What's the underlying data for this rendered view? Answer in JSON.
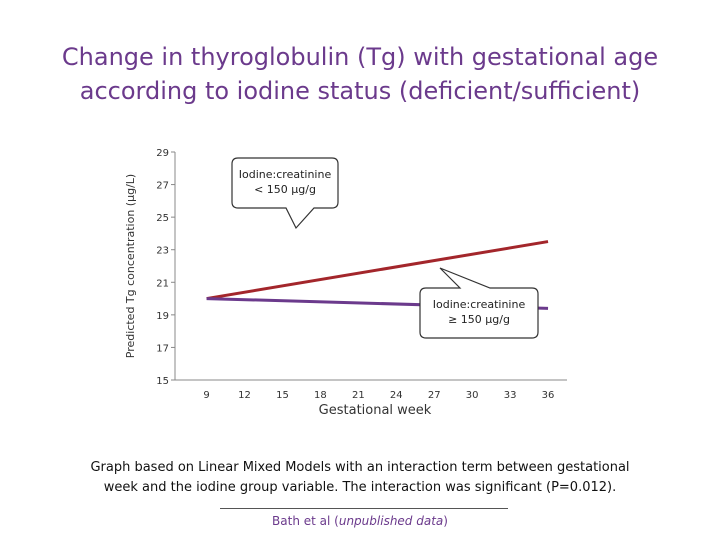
{
  "title_lines": [
    "Change in thyroglobulin (Tg) with gestational age",
    "according to iodine status (deficient/sufficient)"
  ],
  "chart_data": {
    "type": "line",
    "ylabel": "Predicted Tg concentration (μg/L)",
    "xlabel": "Gestational week",
    "ylim": [
      15,
      29
    ],
    "yticks": [
      15,
      17,
      19,
      21,
      23,
      25,
      27,
      29
    ],
    "xticks": [
      9,
      12,
      15,
      18,
      21,
      24,
      27,
      30,
      33,
      36
    ],
    "xlim": [
      6.5,
      37.5
    ],
    "grid": false,
    "series": [
      {
        "name": "Iodine:creatinine < 150 μg/g",
        "color": "#a3262b",
        "x": [
          9,
          36
        ],
        "y": [
          20.0,
          23.5
        ]
      },
      {
        "name": "Iodine:creatinine ≥ 150 μg/g",
        "color": "#6b3a8c",
        "x": [
          9,
          36
        ],
        "y": [
          20.0,
          19.4
        ]
      }
    ],
    "annotations": [
      {
        "series": 0,
        "lines": [
          "Iodine:creatinine",
          "< 150 μg/g"
        ]
      },
      {
        "series": 1,
        "lines": [
          "Iodine:creatinine",
          "≥ 150 μg/g"
        ]
      }
    ]
  },
  "caption_lines": [
    "Graph based on Linear Mixed Models with an interaction term between gestational",
    "week and the iodine group variable. The interaction was significant (P=0.012)."
  ],
  "source": {
    "prefix": "Bath et al (",
    "italic": "unpublished data",
    "suffix": ")"
  }
}
